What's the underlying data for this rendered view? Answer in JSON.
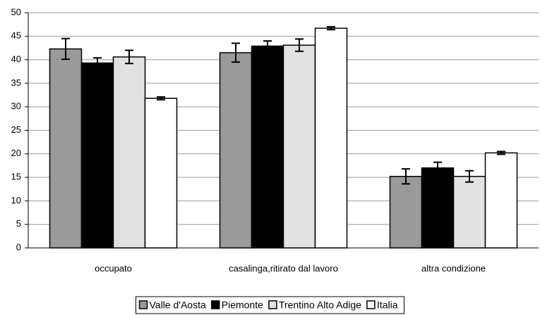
{
  "chart_data": {
    "type": "bar",
    "categories": [
      "occupato",
      "casalinga,ritirato dal lavoro",
      "altra condizione"
    ],
    "series": [
      {
        "name": "Valle d'Aosta",
        "color": "#9a9a9a",
        "values": [
          42.3,
          41.5,
          15.2
        ],
        "errors": [
          2.2,
          2.0,
          1.6
        ]
      },
      {
        "name": "Piemonte",
        "color": "#000000",
        "values": [
          39.3,
          42.9,
          17.0
        ],
        "errors": [
          1.1,
          1.1,
          1.2
        ]
      },
      {
        "name": "Trentino Alto Adige",
        "color": "#e2e2e2",
        "values": [
          40.6,
          43.1,
          15.2
        ],
        "errors": [
          1.4,
          1.3,
          1.2
        ]
      },
      {
        "name": "Italia",
        "color": "#ffffff",
        "values": [
          31.8,
          46.7,
          20.2
        ],
        "errors": [
          0.3,
          0.3,
          0.3
        ]
      }
    ],
    "ylim": [
      0,
      50
    ],
    "yticks": [
      0,
      5,
      10,
      15,
      20,
      25,
      30,
      35,
      40,
      45,
      50
    ],
    "grid": true,
    "legend": "bottom"
  }
}
